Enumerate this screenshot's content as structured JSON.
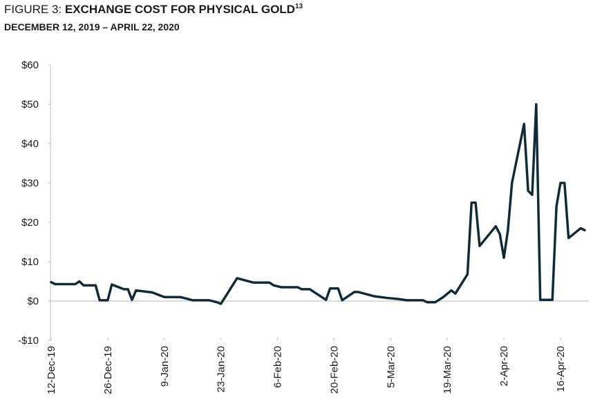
{
  "chart_data": {
    "type": "line",
    "figure_label": "FIGURE 3:",
    "title": "EXCHANGE COST FOR PHYSICAL GOLD",
    "title_footnote": "13",
    "subtitle": "DECEMBER 12, 2019 – APRIL 22, 2020",
    "x": [
      "2019-12-12",
      "2019-12-13",
      "2019-12-18",
      "2019-12-19",
      "2019-12-20",
      "2019-12-23",
      "2019-12-24",
      "2019-12-26",
      "2019-12-27",
      "2019-12-30",
      "2019-12-31",
      "2020-01-01",
      "2020-01-02",
      "2020-01-06",
      "2020-01-09",
      "2020-01-13",
      "2020-01-16",
      "2020-01-20",
      "2020-01-22",
      "2020-01-23",
      "2020-01-27",
      "2020-01-31",
      "2020-02-04",
      "2020-02-05",
      "2020-02-07",
      "2020-02-11",
      "2020-02-12",
      "2020-02-14",
      "2020-02-18",
      "2020-02-19",
      "2020-02-21",
      "2020-02-22",
      "2020-02-25",
      "2020-02-26",
      "2020-03-01",
      "2020-03-04",
      "2020-03-07",
      "2020-03-09",
      "2020-03-13",
      "2020-03-14",
      "2020-03-16",
      "2020-03-18",
      "2020-03-20",
      "2020-03-21",
      "2020-03-24",
      "2020-03-25",
      "2020-03-26",
      "2020-03-27",
      "2020-03-31",
      "2020-04-01",
      "2020-04-02",
      "2020-04-03",
      "2020-04-04",
      "2020-04-07",
      "2020-04-08",
      "2020-04-09",
      "2020-04-10",
      "2020-04-11",
      "2020-04-14",
      "2020-04-15",
      "2020-04-16",
      "2020-04-17",
      "2020-04-18",
      "2020-04-21",
      "2020-04-22"
    ],
    "series": [
      {
        "color": "#0f2b3a",
        "values": [
          4.8,
          4.3,
          4.3,
          5.0,
          4.0,
          4.0,
          0.2,
          0.2,
          4.2,
          3.0,
          3.0,
          0.3,
          2.7,
          2.2,
          1.0,
          1.0,
          0.2,
          0.2,
          -0.3,
          -0.7,
          5.8,
          4.7,
          4.7,
          4.0,
          3.5,
          3.5,
          3.0,
          3.0,
          0.3,
          3.2,
          3.2,
          0.2,
          2.3,
          2.3,
          1.2,
          0.8,
          0.5,
          0.2,
          0.2,
          -0.3,
          -0.3,
          1.0,
          2.7,
          1.9,
          6.8,
          25,
          25,
          14,
          19,
          17,
          11,
          18,
          30,
          45,
          28,
          27,
          50,
          0.3,
          0.3,
          24,
          30,
          30,
          16,
          18.5,
          18
        ]
      }
    ],
    "xlim": [
      "2019-12-12",
      "2020-04-22"
    ],
    "xticks": [
      {
        "value": "2019-12-12",
        "label": "12-Dec-19"
      },
      {
        "value": "2019-12-26",
        "label": "26-Dec-19"
      },
      {
        "value": "2020-01-09",
        "label": "9-Jan-20"
      },
      {
        "value": "2020-01-23",
        "label": "23-Jan-20"
      },
      {
        "value": "2020-02-06",
        "label": "6-Feb-20"
      },
      {
        "value": "2020-02-20",
        "label": "20-Feb-20"
      },
      {
        "value": "2020-03-05",
        "label": "5-Mar-20"
      },
      {
        "value": "2020-03-19",
        "label": "19-Mar-20"
      },
      {
        "value": "2020-04-02",
        "label": "2-Apr-20"
      },
      {
        "value": "2020-04-16",
        "label": "16-Apr-20"
      }
    ],
    "ylim": [
      -10,
      60
    ],
    "yticks": [
      {
        "value": -10,
        "label": "-$10"
      },
      {
        "value": 0,
        "label": "$0"
      },
      {
        "value": 10,
        "label": "$10"
      },
      {
        "value": 20,
        "label": "$20"
      },
      {
        "value": 30,
        "label": "$30"
      },
      {
        "value": 40,
        "label": "$40"
      },
      {
        "value": 50,
        "label": "$50"
      },
      {
        "value": 60,
        "label": "$60"
      }
    ]
  }
}
